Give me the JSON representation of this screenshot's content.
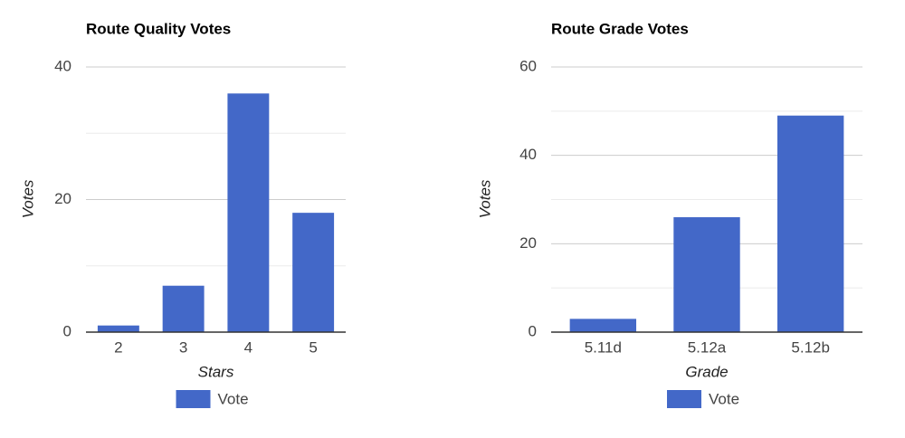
{
  "chart_data": [
    {
      "type": "bar",
      "title": "Route Quality Votes",
      "x_label": "Stars",
      "y_label": "Votes",
      "categories": [
        "2",
        "3",
        "4",
        "5"
      ],
      "series": [
        {
          "name": "Vote",
          "color": "#4368c8",
          "values": [
            1,
            7,
            36,
            18
          ]
        }
      ],
      "ylim": [
        0,
        40
      ],
      "yticks": [
        0,
        20,
        40
      ],
      "minor_yticks": [
        10,
        30
      ],
      "grid": true,
      "legend": "bottom"
    },
    {
      "type": "bar",
      "title": "Route Grade Votes",
      "x_label": "Grade",
      "y_label": "Votes",
      "categories": [
        "5.11d",
        "5.12a",
        "5.12b"
      ],
      "series": [
        {
          "name": "Vote",
          "color": "#4368c8",
          "values": [
            3,
            26,
            49
          ]
        }
      ],
      "ylim": [
        0,
        60
      ],
      "yticks": [
        0,
        20,
        40,
        60
      ],
      "minor_yticks": [
        10,
        30,
        50
      ],
      "grid": true,
      "legend": "bottom"
    }
  ]
}
